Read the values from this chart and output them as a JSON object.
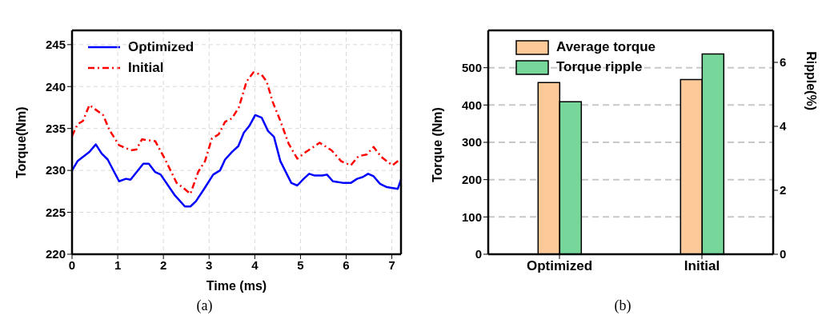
{
  "chart_data": [
    {
      "type": "line",
      "title": "(a)",
      "xlabel": "Time (ms)",
      "ylabel": "Torque(Nm)",
      "xlim": [
        0,
        7.2
      ],
      "xticks": [
        0,
        1,
        2,
        3,
        4,
        5,
        6,
        7
      ],
      "ylim": [
        220,
        246.7
      ],
      "yticks": [
        220,
        225,
        230,
        235,
        240,
        245
      ],
      "grid": true,
      "legend": "top left",
      "marker": "none",
      "series": [
        {
          "name": "Optimized",
          "color": "#0000ff",
          "line_style": "solid",
          "x": [
            0,
            0.12,
            0.38,
            0.52,
            0.65,
            0.78,
            1.03,
            1.18,
            1.28,
            1.56,
            1.68,
            1.82,
            1.94,
            2.24,
            2.47,
            2.59,
            2.71,
            2.88,
            3.09,
            3.24,
            3.35,
            3.5,
            3.64,
            3.76,
            3.88,
            4.01,
            4.15,
            4.29,
            4.42,
            4.56,
            4.8,
            4.93,
            5.07,
            5.19,
            5.3,
            5.48,
            5.58,
            5.71,
            5.95,
            6.1,
            6.24,
            6.36,
            6.48,
            6.6,
            6.74,
            6.89,
            7.13,
            7.2
          ],
          "values": [
            230.0,
            231.1,
            232.2,
            233.1,
            232.0,
            231.3,
            228.7,
            229.0,
            228.9,
            230.8,
            230.8,
            229.8,
            229.5,
            227.1,
            225.7,
            225.7,
            226.3,
            227.7,
            229.5,
            230.0,
            231.3,
            232.2,
            232.9,
            234.5,
            235.3,
            236.6,
            236.3,
            234.7,
            234.0,
            231.1,
            228.5,
            228.2,
            229.0,
            229.6,
            229.4,
            229.4,
            229.5,
            228.7,
            228.5,
            228.5,
            229.0,
            229.2,
            229.6,
            229.3,
            228.4,
            228.0,
            227.8,
            228.9
          ]
        },
        {
          "name": "Initial",
          "color": "#ff0000",
          "line_style": "dashed",
          "x": [
            0,
            0.12,
            0.24,
            0.38,
            0.53,
            0.68,
            0.82,
            1.03,
            1.29,
            1.41,
            1.53,
            1.68,
            1.82,
            2.03,
            2.29,
            2.44,
            2.59,
            2.76,
            2.91,
            3.06,
            3.21,
            3.35,
            3.5,
            3.65,
            3.82,
            3.97,
            4.15,
            4.26,
            4.39,
            4.56,
            4.74,
            4.93,
            5.12,
            5.42,
            5.68,
            5.89,
            6.1,
            6.27,
            6.45,
            6.6,
            6.77,
            7.01,
            7.2
          ],
          "values": [
            234.1,
            235.5,
            235.9,
            237.8,
            237.2,
            236.6,
            234.8,
            233.0,
            232.4,
            232.5,
            233.7,
            233.6,
            233.5,
            231.4,
            228.5,
            227.9,
            227.2,
            229.8,
            231.1,
            233.8,
            234.3,
            235.8,
            236.2,
            237.5,
            240.6,
            241.7,
            241.4,
            240.6,
            238.2,
            235.9,
            233.2,
            231.4,
            232.2,
            233.3,
            232.4,
            231.1,
            230.6,
            231.7,
            231.9,
            232.8,
            231.6,
            230.6,
            231.4
          ]
        }
      ]
    },
    {
      "type": "bar",
      "title": "(b)",
      "ylabel": "Torque (Nm)",
      "y2label": "Ripple(%)",
      "categories": [
        "Optimized",
        "Initial"
      ],
      "ylim": [
        0,
        600
      ],
      "yticks": [
        0,
        100,
        200,
        300,
        400,
        500
      ],
      "y2lim": [
        0,
        7
      ],
      "y2ticks": [
        0,
        2,
        4,
        6
      ],
      "grid": "y",
      "legend": "top left",
      "series": [
        {
          "name": "Average torque",
          "color": "#fdc998",
          "values": [
            460,
            468
          ]
        },
        {
          "name": "Torque ripple",
          "color": "#77d69a",
          "axis": "y2",
          "values": [
            4.77,
            6.26
          ]
        }
      ]
    }
  ]
}
